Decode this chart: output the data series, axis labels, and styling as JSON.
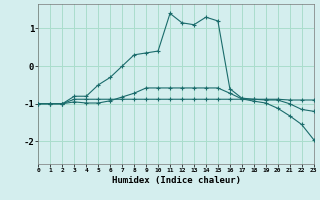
{
  "xlabel": "Humidex (Indice chaleur)",
  "bg_color": "#d4eeee",
  "grid_color": "#aaddcc",
  "line_color": "#1a6b6b",
  "x_min": 0,
  "x_max": 23,
  "y_min": -2.6,
  "y_max": 1.65,
  "yticks": [
    -2,
    -1,
    0,
    1
  ],
  "xtick_labels": [
    "0",
    "1",
    "2",
    "3",
    "4",
    "5",
    "6",
    "7",
    "8",
    "9",
    "10",
    "11",
    "12",
    "13",
    "14",
    "15",
    "16",
    "17",
    "18",
    "19",
    "20",
    "21",
    "22",
    "23"
  ],
  "series1_x": [
    0,
    1,
    2,
    3,
    4,
    5,
    6,
    7,
    8,
    9,
    10,
    11,
    12,
    13,
    14,
    15,
    16,
    17,
    18,
    19,
    20,
    21,
    22,
    23
  ],
  "series1_y": [
    -1.0,
    -1.0,
    -1.0,
    -0.88,
    -0.88,
    -0.88,
    -0.88,
    -0.88,
    -0.88,
    -0.88,
    -0.88,
    -0.88,
    -0.88,
    -0.88,
    -0.88,
    -0.88,
    -0.88,
    -0.88,
    -0.88,
    -0.88,
    -0.88,
    -0.9,
    -0.9,
    -0.9
  ],
  "series2_x": [
    0,
    1,
    2,
    3,
    4,
    5,
    6,
    7,
    8,
    9,
    10,
    11,
    12,
    13,
    14,
    15,
    16,
    17,
    18,
    19,
    20,
    21,
    22,
    23
  ],
  "series2_y": [
    -1.0,
    -1.0,
    -1.0,
    -0.8,
    -0.8,
    -0.5,
    -0.3,
    0.0,
    0.3,
    0.35,
    0.4,
    1.4,
    1.15,
    1.1,
    1.3,
    1.2,
    -0.6,
    -0.85,
    -0.88,
    -0.9,
    -0.9,
    -1.0,
    -1.15,
    -1.2
  ],
  "series3_x": [
    0,
    1,
    2,
    3,
    4,
    5,
    6,
    7,
    8,
    9,
    10,
    11,
    12,
    13,
    14,
    15,
    16,
    17,
    18,
    19,
    20,
    21,
    22,
    23
  ],
  "series3_y": [
    -1.0,
    -1.0,
    -1.0,
    -0.95,
    -0.98,
    -0.98,
    -0.92,
    -0.82,
    -0.72,
    -0.58,
    -0.58,
    -0.58,
    -0.58,
    -0.58,
    -0.58,
    -0.58,
    -0.72,
    -0.87,
    -0.93,
    -0.98,
    -1.12,
    -1.32,
    -1.55,
    -1.95
  ]
}
